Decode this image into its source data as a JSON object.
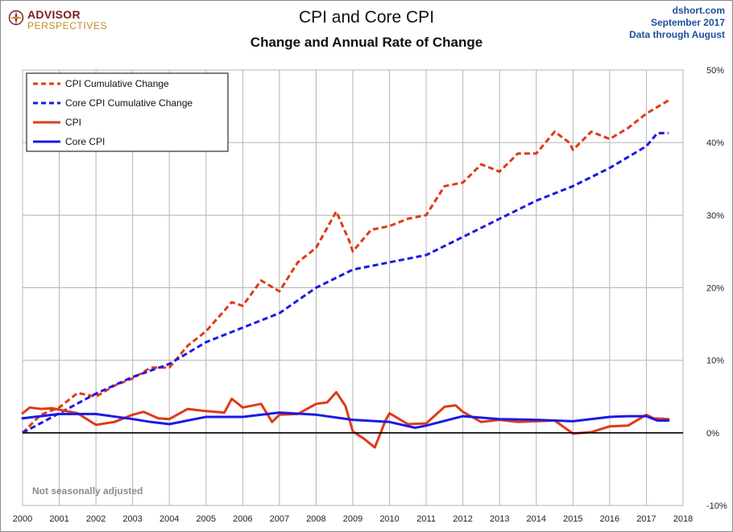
{
  "brand": {
    "line1": "ADVISOR",
    "line2": "PERSPECTIVES"
  },
  "source": {
    "site": "dshort.com",
    "date": "September 2017",
    "data_through": "Data through August"
  },
  "chart_data": {
    "type": "line",
    "title": "CPI and Core CPI",
    "subtitle": "Change and Annual Rate of Change",
    "xlim": [
      2000,
      2018
    ],
    "ylim": [
      -10,
      50
    ],
    "x_ticks": [
      2000,
      2001,
      2002,
      2003,
      2004,
      2005,
      2006,
      2007,
      2008,
      2009,
      2010,
      2011,
      2012,
      2013,
      2014,
      2015,
      2016,
      2017,
      2018
    ],
    "y_ticks": [
      {
        "value": -10,
        "label": "-10%"
      },
      {
        "value": 0,
        "label": "0%"
      },
      {
        "value": 10,
        "label": "10%"
      },
      {
        "value": 20,
        "label": "20%"
      },
      {
        "value": 30,
        "label": "30%"
      },
      {
        "value": 40,
        "label": "40%"
      },
      {
        "value": 50,
        "label": "50%"
      }
    ],
    "annotation": "Not seasonally adjusted",
    "series": [
      {
        "name": "CPI Cumulative Change",
        "color": "#e03a14",
        "dash": true,
        "x": [
          2000,
          2000.5,
          2001,
          2001.5,
          2002,
          2002.5,
          2003,
          2003.5,
          2004,
          2004.5,
          2005,
          2005.7,
          2006,
          2006.5,
          2007,
          2007.5,
          2008,
          2008.55,
          2008.9,
          2009,
          2009.5,
          2010,
          2010.5,
          2011,
          2011.5,
          2012,
          2012.5,
          2013,
          2013.5,
          2014,
          2014.5,
          2014.9,
          2015,
          2015.5,
          2016,
          2016.5,
          2017,
          2017.6
        ],
        "values": [
          0,
          2.5,
          3.5,
          5.5,
          5.0,
          6.5,
          7.5,
          9.0,
          9.0,
          12.0,
          14.0,
          18.0,
          17.5,
          21.0,
          19.5,
          23.5,
          25.5,
          30.5,
          26.5,
          25.0,
          28.0,
          28.5,
          29.5,
          30.0,
          34.0,
          34.5,
          37.0,
          36.0,
          38.5,
          38.5,
          41.5,
          40.0,
          39.0,
          41.5,
          40.5,
          42.0,
          44.0,
          45.8
        ]
      },
      {
        "name": "Core CPI Cumulative Change",
        "color": "#1a1ae6",
        "dash": true,
        "x": [
          2000,
          2001,
          2002,
          2003,
          2004,
          2005,
          2006,
          2007,
          2008,
          2009,
          2010,
          2011,
          2012,
          2013,
          2014,
          2015,
          2016,
          2017,
          2017.3,
          2017.6
        ],
        "values": [
          0,
          2.7,
          5.4,
          7.7,
          9.5,
          12.5,
          14.5,
          16.5,
          20.0,
          22.5,
          23.5,
          24.5,
          27.0,
          29.5,
          32.0,
          34.0,
          36.5,
          39.5,
          41.3,
          41.3
        ]
      },
      {
        "name": "CPI",
        "color": "#e03a14",
        "dash": false,
        "x": [
          2000,
          2000.2,
          2000.5,
          2000.8,
          2001,
          2001.5,
          2002,
          2002.5,
          2003,
          2003.3,
          2003.7,
          2004,
          2004.5,
          2005,
          2005.5,
          2005.7,
          2006,
          2006.5,
          2006.8,
          2007,
          2007.5,
          2008,
          2008.3,
          2008.55,
          2008.8,
          2009,
          2009.3,
          2009.6,
          2009.9,
          2010,
          2010.5,
          2011,
          2011.5,
          2011.8,
          2012,
          2012.5,
          2013,
          2013.5,
          2014,
          2014.5,
          2015,
          2015.5,
          2016,
          2016.5,
          2017,
          2017.2,
          2017.6
        ],
        "values": [
          2.7,
          3.5,
          3.3,
          3.4,
          3.2,
          2.7,
          1.1,
          1.5,
          2.5,
          2.9,
          2.0,
          1.9,
          3.3,
          3.0,
          2.8,
          4.7,
          3.5,
          4.0,
          1.5,
          2.5,
          2.6,
          4.0,
          4.2,
          5.6,
          3.7,
          0.2,
          -0.8,
          -2.0,
          1.8,
          2.7,
          1.2,
          1.3,
          3.6,
          3.8,
          2.9,
          1.5,
          1.8,
          1.5,
          1.6,
          1.7,
          -0.1,
          0.1,
          0.9,
          1.0,
          2.5,
          2.0,
          1.9
        ]
      },
      {
        "name": "Core CPI",
        "color": "#1a1ae6",
        "dash": false,
        "x": [
          2000,
          2001,
          2002,
          2003,
          2003.5,
          2004,
          2005,
          2006,
          2007,
          2008,
          2009,
          2010,
          2010.7,
          2011,
          2012,
          2013,
          2014,
          2015,
          2016,
          2016.5,
          2017,
          2017.3,
          2017.6
        ],
        "values": [
          2.0,
          2.6,
          2.6,
          1.9,
          1.5,
          1.2,
          2.2,
          2.2,
          2.8,
          2.5,
          1.8,
          1.5,
          0.7,
          1.0,
          2.3,
          1.9,
          1.8,
          1.6,
          2.2,
          2.3,
          2.3,
          1.7,
          1.7
        ]
      }
    ]
  }
}
